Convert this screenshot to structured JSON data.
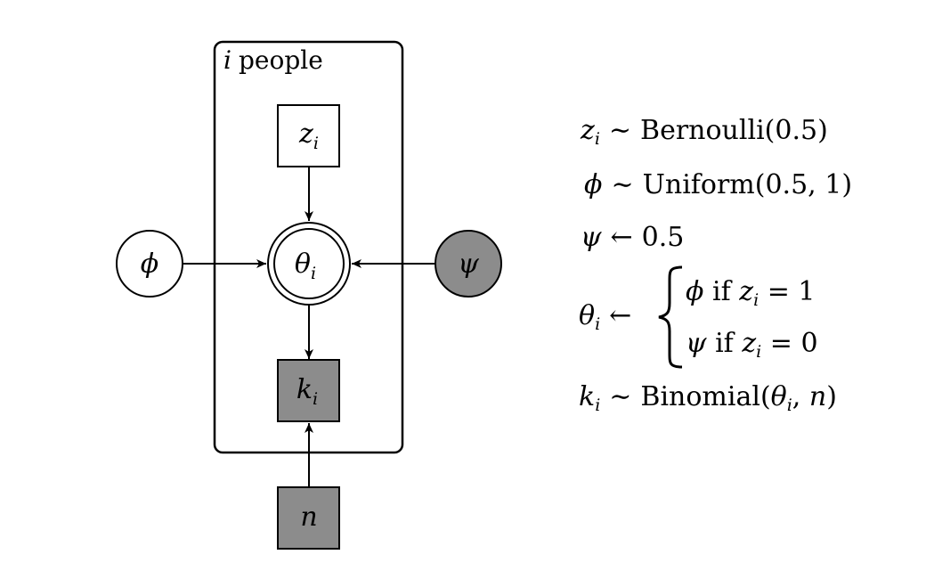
{
  "plate": {
    "label_var": "i",
    "label_text": "people"
  },
  "nodes": {
    "z": {
      "symbol": "z",
      "subscript": "i",
      "shape": "square",
      "observed": false
    },
    "theta": {
      "symbol": "θ",
      "subscript": "i",
      "shape": "double-circle",
      "observed": false
    },
    "k": {
      "symbol": "k",
      "subscript": "i",
      "shape": "square",
      "observed": true
    },
    "phi": {
      "symbol": "ϕ",
      "shape": "circle",
      "observed": false
    },
    "psi": {
      "symbol": "ψ",
      "shape": "circle",
      "observed": true
    },
    "n": {
      "symbol": "n",
      "shape": "square",
      "observed": true
    }
  },
  "edges": [
    {
      "from": "z",
      "to": "theta"
    },
    {
      "from": "phi",
      "to": "theta"
    },
    {
      "from": "psi",
      "to": "theta"
    },
    {
      "from": "theta",
      "to": "k"
    },
    {
      "from": "n",
      "to": "k"
    }
  ],
  "colors": {
    "observed_fill": "#8c8c8c",
    "stroke": "#000000",
    "background": "#ffffff"
  },
  "equations": {
    "z": {
      "lhs": "z",
      "lhs_sub": "i",
      "op": "∼",
      "rhs": "Bernoulli(0.5)"
    },
    "phi": {
      "lhs": "ϕ",
      "op": "∼",
      "rhs": "Uniform(0.5, 1)"
    },
    "psi": {
      "lhs": "ψ",
      "op": "←",
      "rhs": "0.5"
    },
    "theta": {
      "lhs": "θ",
      "lhs_sub": "i",
      "op": "←",
      "case1": {
        "value": "ϕ",
        "cond_word": "if",
        "cond_var": "z",
        "cond_sub": "i",
        "cond_rel": "= 1"
      },
      "case2": {
        "value": "ψ",
        "cond_word": "if",
        "cond_var": "z",
        "cond_sub": "i",
        "cond_rel": "= 0"
      }
    },
    "k": {
      "lhs": "k",
      "lhs_sub": "i",
      "op": "∼",
      "rhs_pre": "Binomial(",
      "rhs_var1": "θ",
      "rhs_sub": "i",
      "rhs_post": ", ",
      "rhs_var2": "n",
      "rhs_close": ")"
    }
  }
}
